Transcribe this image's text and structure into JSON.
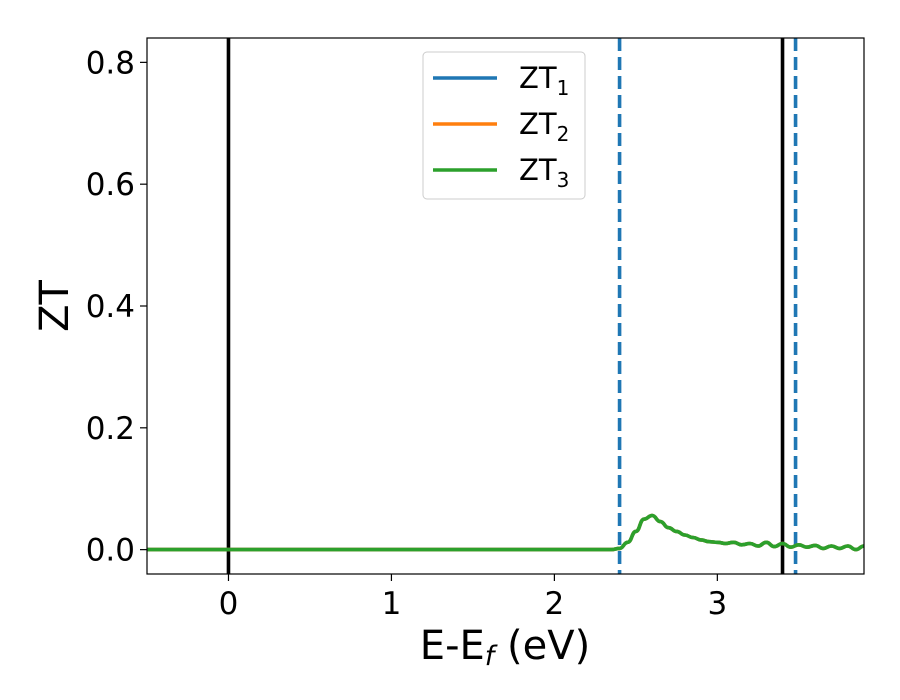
{
  "chart_data": {
    "type": "line",
    "title": "",
    "xlabel": "E-E",
    "xlabel_sub": "f",
    "xlabel_unit": " (eV)",
    "ylabel": "ZT",
    "xlim": [
      -0.5,
      3.9
    ],
    "ylim": [
      -0.04,
      0.84
    ],
    "xticks": [
      0,
      1,
      2,
      3
    ],
    "yticks": [
      0.0,
      0.2,
      0.4,
      0.6,
      0.8
    ],
    "xtick_labels": [
      "0",
      "1",
      "2",
      "3"
    ],
    "ytick_labels": [
      "0.0",
      "0.2",
      "0.4",
      "0.6",
      "0.8"
    ],
    "grid": false,
    "legend_position": "top-center",
    "series": [
      {
        "name": "ZT",
        "name_sub": "1",
        "color": "#1f77b4",
        "x": [
          -0.5,
          2.35,
          2.4,
          2.45,
          2.5,
          2.55,
          2.6,
          2.65,
          2.7,
          2.75,
          2.8,
          2.85,
          2.9,
          2.95,
          3.0,
          3.05,
          3.1,
          3.15,
          3.2,
          3.25,
          3.3,
          3.35,
          3.4,
          3.45,
          3.5,
          3.55,
          3.6,
          3.65,
          3.7,
          3.75,
          3.8,
          3.85,
          3.9
        ],
        "y": [
          0.0,
          0.0,
          0.002,
          0.012,
          0.03,
          0.05,
          0.056,
          0.046,
          0.036,
          0.03,
          0.024,
          0.02,
          0.016,
          0.013,
          0.012,
          0.01,
          0.012,
          0.008,
          0.01,
          0.006,
          0.012,
          0.005,
          0.01,
          0.004,
          0.008,
          0.004,
          0.007,
          0.002,
          0.006,
          0.002,
          0.006,
          0.0,
          0.006
        ]
      },
      {
        "name": "ZT",
        "name_sub": "2",
        "color": "#ff7f0e",
        "x": [
          -0.5,
          2.35,
          2.4,
          2.45,
          2.5,
          2.55,
          2.6,
          2.65,
          2.7,
          2.75,
          2.8,
          2.85,
          2.9,
          2.95,
          3.0,
          3.05,
          3.1,
          3.15,
          3.2,
          3.25,
          3.3,
          3.35,
          3.4,
          3.45,
          3.5,
          3.55,
          3.6,
          3.65,
          3.7,
          3.75,
          3.8,
          3.85,
          3.9
        ],
        "y": [
          0.0,
          0.0,
          0.002,
          0.012,
          0.03,
          0.05,
          0.056,
          0.046,
          0.036,
          0.03,
          0.024,
          0.02,
          0.016,
          0.013,
          0.012,
          0.01,
          0.012,
          0.008,
          0.01,
          0.006,
          0.012,
          0.005,
          0.01,
          0.004,
          0.008,
          0.004,
          0.007,
          0.002,
          0.006,
          0.002,
          0.006,
          0.0,
          0.006
        ]
      },
      {
        "name": "ZT",
        "name_sub": "3",
        "color": "#2ca02c",
        "x": [
          -0.5,
          2.35,
          2.4,
          2.45,
          2.5,
          2.55,
          2.6,
          2.65,
          2.7,
          2.75,
          2.8,
          2.85,
          2.9,
          2.95,
          3.0,
          3.05,
          3.1,
          3.15,
          3.2,
          3.25,
          3.3,
          3.35,
          3.4,
          3.45,
          3.5,
          3.55,
          3.6,
          3.65,
          3.7,
          3.75,
          3.8,
          3.85,
          3.9
        ],
        "y": [
          0.0,
          0.0,
          0.002,
          0.012,
          0.03,
          0.05,
          0.056,
          0.046,
          0.036,
          0.03,
          0.024,
          0.02,
          0.016,
          0.013,
          0.012,
          0.01,
          0.012,
          0.008,
          0.01,
          0.006,
          0.012,
          0.005,
          0.01,
          0.004,
          0.008,
          0.004,
          0.007,
          0.002,
          0.006,
          0.002,
          0.006,
          0.0,
          0.006
        ]
      }
    ],
    "vlines": [
      {
        "x": 0.0,
        "style": "solid",
        "color": "#000000"
      },
      {
        "x": 3.4,
        "style": "solid",
        "color": "#000000"
      },
      {
        "x": 2.4,
        "style": "dashed",
        "color": "#1f77b4"
      },
      {
        "x": 3.48,
        "style": "dashed",
        "color": "#1f77b4"
      }
    ]
  }
}
